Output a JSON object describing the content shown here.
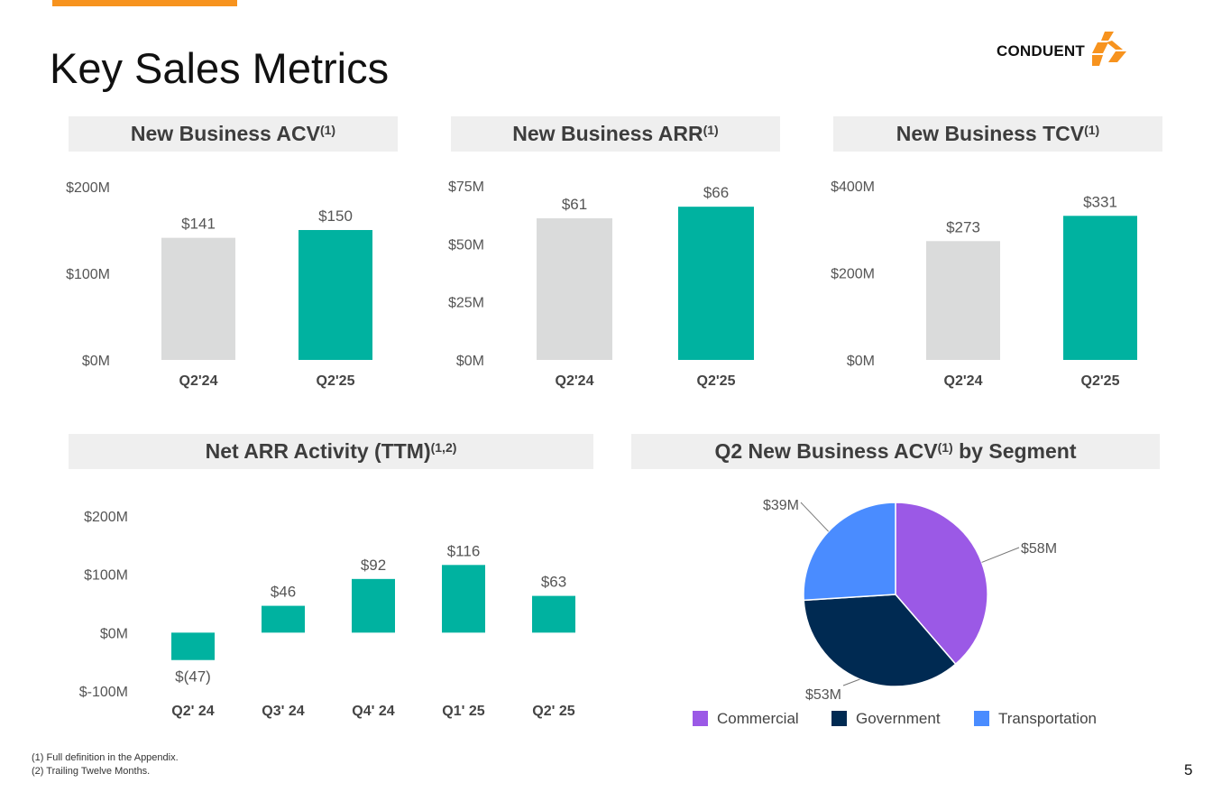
{
  "page": {
    "title": "Key Sales Metrics",
    "page_number": "5",
    "logo_text": "CONDUENT",
    "footnotes": [
      "(1) Full definition in the Appendix.",
      "(2) Trailing Twelve Months."
    ]
  },
  "colors": {
    "accent": "#F7931E",
    "teal": "#00B2A0",
    "gray": "#DADBDB",
    "commercial": "#9B59E6",
    "government": "#002A52",
    "transportation": "#4A8CFF"
  },
  "panels": {
    "acv": {
      "title": "New Business ACV",
      "sup": "(1)"
    },
    "arr": {
      "title": "New Business ARR",
      "sup": "(1)"
    },
    "tcv": {
      "title": "New Business TCV",
      "sup": "(1)"
    },
    "net": {
      "title": "Net ARR Activity (TTM)",
      "sup": "(1,2)"
    },
    "seg": {
      "title": "Q2 New Business ACV",
      "sup": "(1)",
      "title_suffix": " by Segment"
    }
  },
  "chart_data": [
    {
      "id": "acv",
      "type": "bar",
      "title": "New Business ACV",
      "categories": [
        "Q2'24",
        "Q2'25"
      ],
      "values": [
        141,
        150
      ],
      "labels": [
        "$141",
        "$150"
      ],
      "ylim": [
        0,
        200
      ],
      "yticks": [
        0,
        100,
        200
      ],
      "ytick_labels": [
        "$0M",
        "$100M",
        "$200M"
      ],
      "bar_colors": [
        "gray",
        "teal"
      ]
    },
    {
      "id": "arr",
      "type": "bar",
      "title": "New Business ARR",
      "categories": [
        "Q2'24",
        "Q2'25"
      ],
      "values": [
        61,
        66
      ],
      "labels": [
        "$61",
        "$66"
      ],
      "ylim": [
        0,
        75
      ],
      "yticks": [
        0,
        25,
        50,
        75
      ],
      "ytick_labels": [
        "$0M",
        "$25M",
        "$50M",
        "$75M"
      ],
      "bar_colors": [
        "gray",
        "teal"
      ]
    },
    {
      "id": "tcv",
      "type": "bar",
      "title": "New Business TCV",
      "categories": [
        "Q2'24",
        "Q2'25"
      ],
      "values": [
        273,
        331
      ],
      "labels": [
        "$273",
        "$331"
      ],
      "ylim": [
        0,
        400
      ],
      "yticks": [
        0,
        200,
        400
      ],
      "ytick_labels": [
        "$0M",
        "$200M",
        "$400M"
      ],
      "bar_colors": [
        "gray",
        "teal"
      ]
    },
    {
      "id": "net",
      "type": "bar",
      "title": "Net ARR Activity (TTM)",
      "categories": [
        "Q2' 24",
        "Q3' 24",
        "Q4' 24",
        "Q1' 25",
        "Q2' 25"
      ],
      "values": [
        -47,
        46,
        92,
        116,
        63
      ],
      "labels": [
        "$(47)",
        "$46",
        "$92",
        "$116",
        "$63"
      ],
      "ylim": [
        -100,
        200
      ],
      "yticks": [
        -100,
        0,
        100,
        200
      ],
      "ytick_labels": [
        "$-100M",
        "$0M",
        "$100M",
        "$200M"
      ],
      "bar_colors": [
        "teal",
        "teal",
        "teal",
        "teal",
        "teal"
      ]
    },
    {
      "id": "seg",
      "type": "pie",
      "title": "Q2 New Business ACV by Segment",
      "slices": [
        {
          "name": "Commercial",
          "value": 58,
          "label": "$58M",
          "color": "commercial"
        },
        {
          "name": "Government",
          "value": 53,
          "label": "$53M",
          "color": "government"
        },
        {
          "name": "Transportation",
          "value": 39,
          "label": "$39M",
          "color": "transportation"
        }
      ]
    }
  ]
}
